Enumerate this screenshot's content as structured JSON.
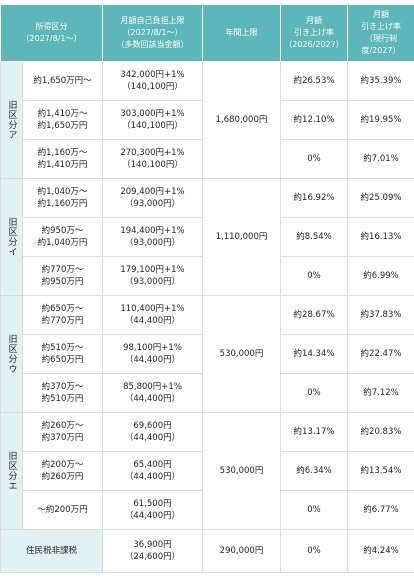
{
  "header": {
    "columns": [
      [
        "所得区分",
        "（2027/8/1〜）"
      ],
      [
        "月額自己負担上限",
        "（2027/8/1〜）",
        "（多数回該当金額）"
      ],
      [
        "年間上限"
      ],
      [
        "月額",
        "引き上げ率",
        "（2026/2027）"
      ],
      [
        "月額",
        "引き上げ率",
        "（現行制度/2027）"
      ]
    ]
  },
  "groups": [
    {
      "label": "旧区分ア",
      "annual": "1,680,000円",
      "rows": [
        {
          "income": [
            "約1,650万円〜"
          ],
          "monthly": [
            "342,000円+1%",
            "（140,100円）"
          ],
          "rate_2026": "約26.53%",
          "rate_current": "約35.39%"
        },
        {
          "income": [
            "約1,410万〜",
            "約1,650万円"
          ],
          "monthly": [
            "303,000円+1%",
            "（140,100円）"
          ],
          "rate_2026": "約12.10%",
          "rate_current": "約19.95%"
        },
        {
          "income": [
            "約1,160万〜",
            "約1,410万円"
          ],
          "monthly": [
            "270,300円+1%",
            "（140,100円）"
          ],
          "rate_2026": "0%",
          "rate_current": "約7.01%"
        }
      ]
    },
    {
      "label": "旧区分イ",
      "annual": "1,110,000円",
      "rows": [
        {
          "income": [
            "約1,040万〜",
            "約1,160万円"
          ],
          "monthly": [
            "209,400円+1%",
            "（93,000円）"
          ],
          "rate_2026": "約16.92%",
          "rate_current": "約25.09%"
        },
        {
          "income": [
            "約950万〜",
            "約1,040万円"
          ],
          "monthly": [
            "194,400円+1%",
            "（93,000円）"
          ],
          "rate_2026": "約8.54%",
          "rate_current": "約16.13%"
        },
        {
          "income": [
            "約770万〜",
            "約950万円"
          ],
          "monthly": [
            "179,100円+1%",
            "（93,000円）"
          ],
          "rate_2026": "0%",
          "rate_current": "約6.99%"
        }
      ]
    },
    {
      "label": "旧区分ウ",
      "annual": "530,000円",
      "rows": [
        {
          "income": [
            "約650万〜",
            "約770万円"
          ],
          "monthly": [
            "110,400円+1%",
            "（44,400円）"
          ],
          "rate_2026": "約28.67%",
          "rate_current": "約37.83%"
        },
        {
          "income": [
            "約510万〜",
            "約650万円"
          ],
          "monthly": [
            "98,100円+1%",
            "（44,400円）"
          ],
          "rate_2026": "約14.34%",
          "rate_current": "約22.47%"
        },
        {
          "income": [
            "約370万〜",
            "約510万円"
          ],
          "monthly": [
            "85,800円+1%",
            "（44,400円）"
          ],
          "rate_2026": "0%",
          "rate_current": "約7.12%"
        }
      ]
    },
    {
      "label": "旧区分エ",
      "annual": "530,000円",
      "rows": [
        {
          "income": [
            "約260万〜",
            "約370万円"
          ],
          "monthly": [
            "69,600円",
            "（44,400円）"
          ],
          "rate_2026": "約13.17%",
          "rate_current": "約20.83%"
        },
        {
          "income": [
            "約200万〜",
            "約260万円"
          ],
          "monthly": [
            "65,400円",
            "（44,400円）"
          ],
          "rate_2026": "約6.34%",
          "rate_current": "約13.54%"
        },
        {
          "income": [
            "〜約200万円"
          ],
          "monthly": [
            "61,500円",
            "（44,400円）"
          ],
          "rate_2026": "0%",
          "rate_current": "約6.77%"
        }
      ]
    }
  ],
  "footer_row": {
    "label": "住民税非課税",
    "monthly": [
      "36,900円",
      "（24,600円）"
    ],
    "annual": "290,000円",
    "rate_2026": "0%",
    "rate_current": "約4.24%"
  }
}
